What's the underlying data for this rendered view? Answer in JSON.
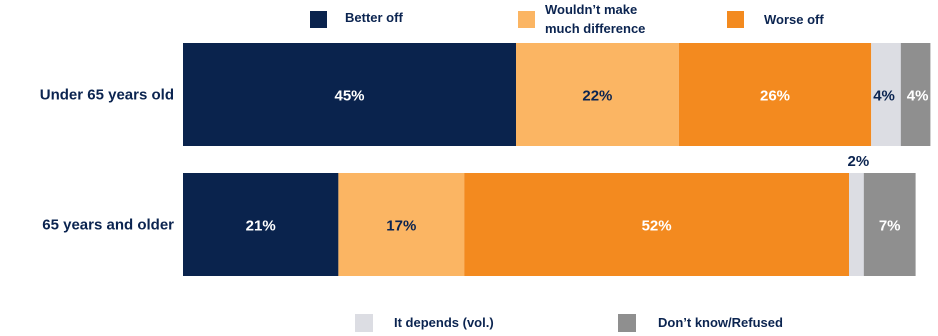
{
  "chart_data": {
    "type": "bar",
    "orientation": "horizontal",
    "stacked": true,
    "percent": true,
    "title": "",
    "xlabel": "",
    "ylabel": "",
    "xlim": [
      0,
      100
    ],
    "grid": false,
    "categories": [
      "Under 65 years old",
      "65 years and older"
    ],
    "series": [
      {
        "name": "Better off",
        "values": [
          45,
          21
        ],
        "labels": [
          "45%",
          "21%"
        ],
        "color": "#0a234d",
        "label_color": "#ffffff"
      },
      {
        "name": "Wouldn’t make much difference",
        "values": [
          22,
          17
        ],
        "labels": [
          "22%",
          "17%"
        ],
        "color": "#fbb563",
        "label_color": "#0b2450"
      },
      {
        "name": "Worse off",
        "values": [
          26,
          52
        ],
        "labels": [
          "26%",
          "52%"
        ],
        "color": "#f38a1f",
        "label_color": "#ffffff"
      },
      {
        "name": "It depends (vol.)",
        "values": [
          4,
          2
        ],
        "labels": [
          "4%",
          "2%"
        ],
        "color": "#dcdde3",
        "label_color": "#0b2450"
      },
      {
        "name": "Don’t know/Refused",
        "values": [
          4,
          7
        ],
        "labels": [
          "4%",
          "7%"
        ],
        "color": "#8f8f8f",
        "label_color": "#ffffff"
      }
    ],
    "legend": {
      "top": [
        "Better off",
        "Wouldn’t make much difference",
        "Worse off"
      ],
      "bottom": [
        "It depends (vol.)",
        "Don’t know/Refused"
      ]
    }
  }
}
